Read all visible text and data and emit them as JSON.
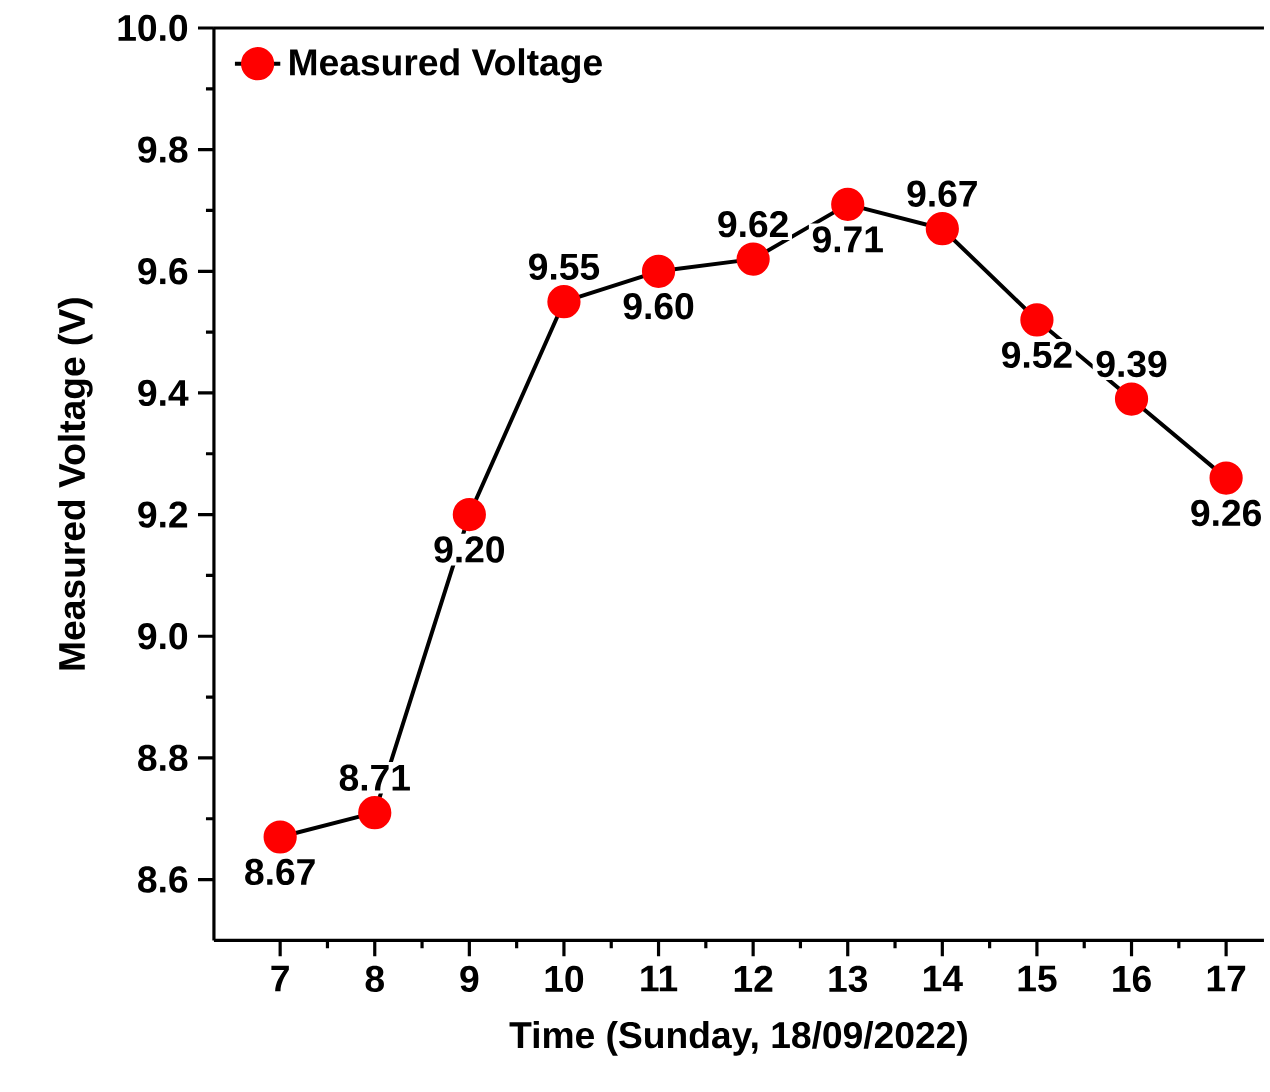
{
  "chart_data": {
    "type": "line",
    "xlabel": "Time (Sunday, 18/09/2022)",
    "ylabel": "Measured Voltage (V)",
    "x": [
      7,
      8,
      9,
      10,
      11,
      12,
      13,
      14,
      15,
      16,
      17
    ],
    "series": [
      {
        "name": "Measured Voltage",
        "color": "#ff0000",
        "values": [
          8.67,
          8.71,
          9.2,
          9.55,
          9.6,
          9.62,
          9.71,
          9.67,
          9.52,
          9.39,
          9.26
        ],
        "value_labels": [
          "8.67",
          "8.71",
          "9.20",
          "9.55",
          "9.60",
          "9.62",
          "9.71",
          "9.67",
          "9.52",
          "9.39",
          "9.26"
        ]
      }
    ],
    "xlim": [
      6.3,
      17.4
    ],
    "ylim": [
      8.5,
      10.0
    ],
    "xticks": [
      7,
      8,
      9,
      10,
      11,
      12,
      13,
      14,
      15,
      16,
      17
    ],
    "yticks": [
      {
        "value": 8.6,
        "label": "8.6"
      },
      {
        "value": 8.8,
        "label": "8.8"
      },
      {
        "value": 9.0,
        "label": "9.0"
      },
      {
        "value": 9.2,
        "label": "9.2"
      },
      {
        "value": 9.4,
        "label": "9.4"
      },
      {
        "value": 9.6,
        "label": "9.6"
      },
      {
        "value": 9.8,
        "label": "9.8"
      },
      {
        "value": 10.0,
        "label": "10.0"
      }
    ],
    "legend": "top left",
    "marker": "circle",
    "line_style": "solid",
    "grid": false
  }
}
